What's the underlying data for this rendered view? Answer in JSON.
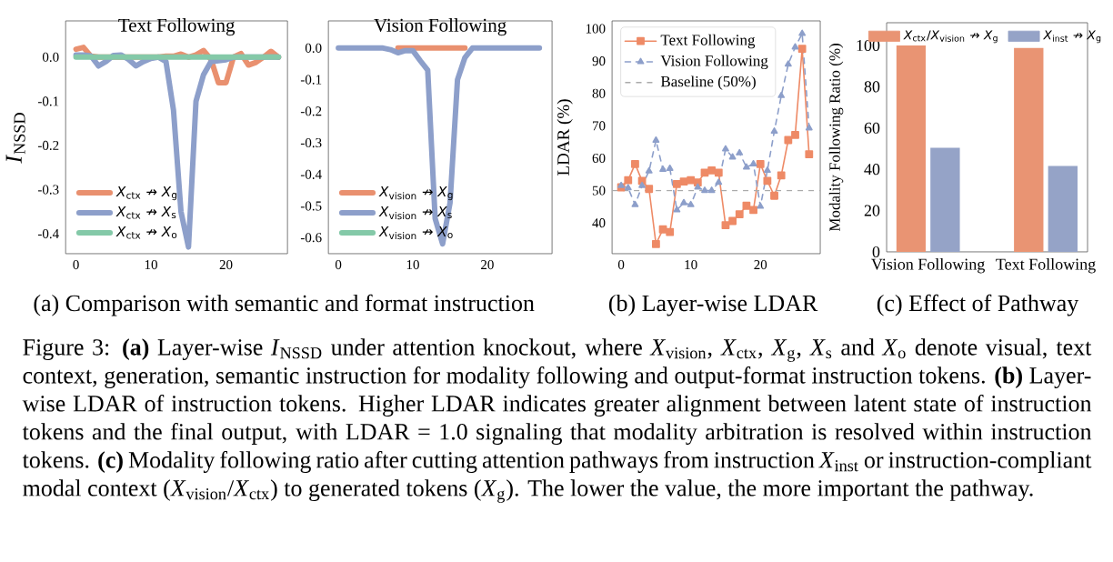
{
  "chart_data": [
    {
      "type": "line",
      "title": "Text Following",
      "ylabel": "*I*$_{NSSD}$",
      "x": [
        0,
        1,
        2,
        3,
        4,
        5,
        6,
        7,
        8,
        9,
        10,
        11,
        12,
        13,
        14,
        15,
        16,
        17,
        18,
        19,
        20,
        21,
        22,
        23,
        24,
        25,
        26,
        27
      ],
      "series": [
        {
          "name": "*X*$_{ctx}$ ↛ *X*$_{g}$",
          "color": "#e9906f",
          "values": [
            0.018,
            0.022,
            0.002,
            0,
            0,
            0,
            0,
            0,
            0,
            0,
            0,
            0,
            0.002,
            0.002,
            0.007,
            0,
            0.005,
            0.015,
            -0.005,
            -0.058,
            -0.058,
            0,
            0.008,
            -0.018,
            -0.012,
            0,
            0.013,
            0
          ]
        },
        {
          "name": "*X*$_{ctx}$ ↛ *X*$_{s}$",
          "color": "#8d9fca",
          "values": [
            0.005,
            0.005,
            0.003,
            -0.02,
            -0.01,
            0.004,
            0.005,
            -0.005,
            -0.02,
            -0.01,
            -0.003,
            0,
            -0.01,
            -0.12,
            -0.35,
            -0.43,
            -0.1,
            -0.04,
            -0.01,
            -0.008,
            -0.006,
            0,
            0,
            0,
            0,
            0,
            0,
            0
          ]
        },
        {
          "name": "*X*$_{ctx}$ ↛ *X*$_{o}$",
          "color": "#84c9a8",
          "values": [
            0,
            0,
            0,
            0,
            0,
            0,
            0,
            0,
            0,
            0,
            0,
            0,
            0,
            0,
            0,
            0,
            0,
            0,
            0,
            0,
            0,
            0,
            0,
            0,
            0,
            0,
            0,
            0
          ]
        }
      ],
      "xlim": [
        -1.38,
        28.2
      ],
      "ylim": [
        -0.445,
        0.082
      ],
      "xticks": [
        0,
        10,
        20
      ],
      "yticks": [
        {
          "value": 0,
          "label": "0.0"
        },
        {
          "value": -0.1,
          "label": "-0.1"
        },
        {
          "value": -0.2,
          "label": "-0.2"
        },
        {
          "value": -0.3,
          "label": "-0.3"
        },
        {
          "value": -0.4,
          "label": "-0.4"
        }
      ],
      "legend": "bottom left",
      "annotations": [
        "(a) Comparison with semantic and format instruction",
        "Figure 3: **(a)** Layer-wise *I*$_{NSSD}$ under attention knockout, where *X*$_{vision}$, *X*$_{ctx}$, *X*$_{g}$, *X*$_{s}$ and *X*$_{o}$ denote visual, text context, generation, semantic instruction for modality following and output-format instruction tokens. **(b)** Layer-wise LDAR of instruction tokens. Higher LDAR indicates greater alignment between latent state of instruction tokens and the final output, with LDAR = 1.0 signaling that modality arbitration is resolved within instruction tokens. **(c)** Modality following ratio after cutting attention pathways from instruction *X*$_{inst}$ or instruction-compliant modal context (*X*$_{vision}$/*X*$_{ctx}$) to generated tokens (*X*$_{g}$). The lower the value, the more important the pathway."
      ]
    },
    {
      "type": "line",
      "title": "Vision Following",
      "x": [
        0,
        1,
        2,
        3,
        4,
        5,
        6,
        7,
        8,
        9,
        10,
        11,
        12,
        13,
        14,
        15,
        16,
        17,
        18,
        19,
        20,
        21,
        22,
        23,
        24,
        25,
        26,
        27
      ],
      "series": [
        {
          "name": "*X*$_{vision}$ ↛ *X*$_{g}$",
          "color": "#e9906f",
          "values": [
            null,
            null,
            null,
            null,
            null,
            null,
            null,
            null,
            0,
            0,
            0,
            0,
            0,
            0,
            0,
            0,
            0,
            0,
            null,
            null,
            null,
            null,
            null,
            null,
            null,
            null,
            null,
            null
          ]
        },
        {
          "name": "*X*$_{vision}$ ↛ *X*$_{s}$",
          "color": "#8d9fca",
          "values": [
            0,
            0,
            0,
            0,
            0,
            0,
            0,
            -0.005,
            -0.015,
            -0.008,
            -0.008,
            -0.04,
            -0.07,
            -0.54,
            -0.62,
            -0.49,
            -0.1,
            -0.03,
            0,
            0,
            0,
            0,
            0,
            0,
            0,
            0,
            0,
            0
          ]
        },
        {
          "name": "*X*$_{vision}$ ↛ *X*$_{o}$",
          "color": "#84c9a8",
          "values": [
            null,
            null,
            null,
            null,
            null,
            null,
            null,
            null,
            null,
            null,
            null,
            null,
            null,
            null,
            null,
            null,
            null,
            null,
            null,
            null,
            null,
            null,
            null,
            null,
            null,
            null,
            null,
            null
          ]
        }
      ],
      "xlim": [
        -1.34,
        28.7
      ],
      "ylim": [
        -0.651,
        0.086
      ],
      "xticks": [
        0,
        10,
        20
      ],
      "yticks": [
        {
          "value": 0,
          "label": "0.0"
        },
        {
          "value": -0.1,
          "label": "-0.1"
        },
        {
          "value": -0.2,
          "label": "-0.2"
        },
        {
          "value": -0.3,
          "label": "-0.3"
        },
        {
          "value": -0.4,
          "label": "-0.4"
        },
        {
          "value": -0.5,
          "label": "-0.5"
        },
        {
          "value": -0.6,
          "label": "-0.6"
        }
      ],
      "legend": "bottom left"
    },
    {
      "type": "line",
      "ylabel": "LDAR (%)",
      "x": [
        0,
        1,
        2,
        3,
        4,
        5,
        6,
        7,
        8,
        9,
        10,
        11,
        12,
        13,
        14,
        15,
        16,
        17,
        18,
        19,
        20,
        21,
        22,
        23,
        24,
        25,
        26,
        27
      ],
      "series": [
        {
          "name": "Text Following",
          "color": "#ee8a66",
          "marker": "square",
          "line_style": "solid",
          "values": [
            51,
            53.2,
            58.2,
            53,
            50.5,
            33.5,
            38,
            37.2,
            52,
            52.8,
            53.2,
            52.5,
            55.5,
            56.2,
            55.5,
            39.3,
            40.6,
            42.7,
            45.3,
            44,
            58.2,
            53,
            48.4,
            54.7,
            65.6,
            67.2,
            93.8,
            61.2
          ]
        },
        {
          "name": "Vision Following",
          "color": "#8d9fca",
          "marker": "triangle",
          "line_style": "dashed",
          "values": [
            51.5,
            50.8,
            45.6,
            51.5,
            56,
            65.5,
            56.5,
            56.8,
            44,
            46.2,
            45.6,
            51,
            50,
            50,
            52.5,
            62.8,
            60.3,
            61.6,
            57.2,
            58.2,
            45.1,
            56.2,
            68.3,
            79.3,
            89,
            94.3,
            98.5,
            69.3
          ]
        }
      ],
      "xlim": [
        -1.31,
        28.6
      ],
      "ylim": [
        30.5,
        102.4
      ],
      "xticks": [
        0,
        10,
        20
      ],
      "yticks": [
        40,
        50,
        60,
        70,
        80,
        90,
        100
      ],
      "ref_lines": [
        {
          "axis": "y",
          "value": 50,
          "label": "Baseline (50%)",
          "color": "#aaaaaa",
          "line_style": "dashed"
        }
      ],
      "legend": "top left",
      "annotations": [
        "(b) Layer-wise LDAR"
      ]
    },
    {
      "type": "bar",
      "ylabel": "Modality Following Ratio (%)",
      "categories": [
        "Vision Following",
        "Text Following"
      ],
      "series": [
        {
          "name": "*X*$_{ctx}$/*X*$_{vision}$ ↛ *X*$_{g}$",
          "color": "#e99473",
          "values": [
            100,
            98.8
          ]
        },
        {
          "name": "*X*$_{inst}$ ↛ *X*$_{g}$",
          "color": "#95a3c7",
          "values": [
            50.4,
            41.6
          ]
        }
      ],
      "ylim": [
        0,
        111
      ],
      "yticks": [
        0,
        20,
        40,
        60,
        80,
        100
      ],
      "legend": "top",
      "annotations": [
        "(c) Effect of Pathway"
      ]
    }
  ]
}
